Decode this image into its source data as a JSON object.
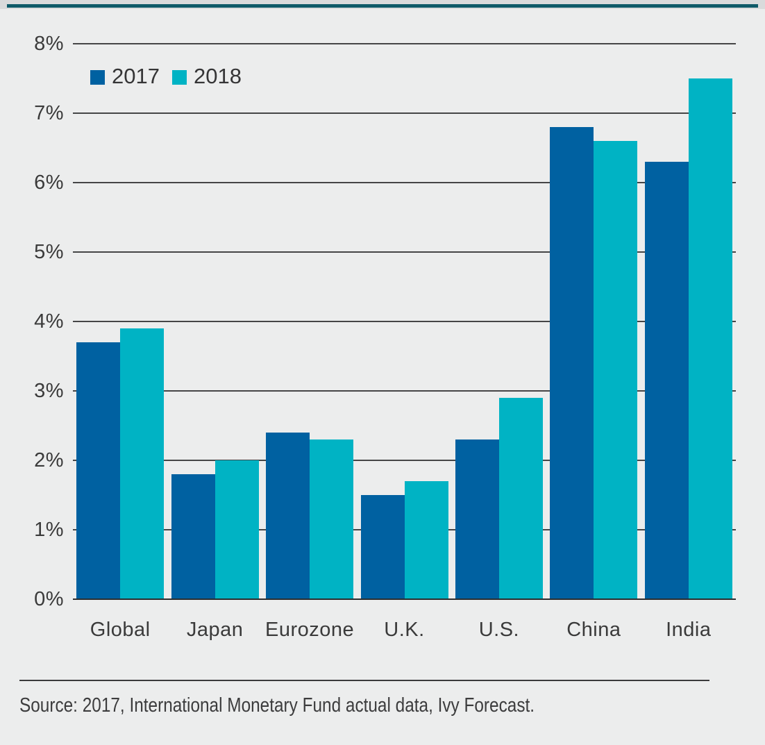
{
  "page": {
    "background_color": "#eceded",
    "top_band_color": "#d9dadb",
    "accent_rule_color": "#0e5a68"
  },
  "chart_data": {
    "type": "bar",
    "categories": [
      "Global",
      "Japan",
      "Eurozone",
      "U.K.",
      "U.S.",
      "China",
      "India"
    ],
    "series": [
      {
        "name": "2017",
        "color": "#0061a1",
        "values": [
          3.7,
          1.8,
          2.4,
          1.5,
          2.3,
          6.8,
          6.3
        ]
      },
      {
        "name": "2018",
        "color": "#00b3c4",
        "values": [
          3.9,
          2.0,
          2.3,
          1.7,
          2.9,
          6.6,
          7.5
        ]
      }
    ],
    "title": "",
    "xlabel": "",
    "ylabel": "",
    "y_ticks": [
      "0%",
      "1%",
      "2%",
      "3%",
      "4%",
      "5%",
      "6%",
      "7%",
      "8%"
    ],
    "ylim": [
      0,
      8
    ],
    "grid": true,
    "legend_position": "top-left",
    "grid_color": "#454546",
    "axis_color": "#2d2d2e",
    "text_color": "#3a3a3a"
  },
  "footer": {
    "source_text": "Source: 2017, International Monetary Fund actual data, Ivy Forecast."
  }
}
